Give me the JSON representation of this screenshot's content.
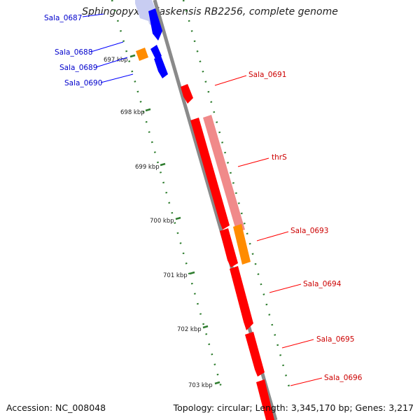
{
  "title": "Sphingopyxis alaskensis RB2256, complete genome",
  "accession": "Accession: NC_008048",
  "summary": "Topology: circular; Length: 3,345,170 bp; Genes: 3,217",
  "colors": {
    "forward": "#ff0000",
    "forward_faded": "#f08a8a",
    "reverse": "#0000ff",
    "reverse_faded": "#c8cdf2",
    "other": "#ff8c00",
    "backbone": "#8a8a8a",
    "tick": "#2e7d2e"
  },
  "ticks": [
    {
      "label": "697 kbp"
    },
    {
      "label": "698 kbp"
    },
    {
      "label": "699 kbp"
    },
    {
      "label": "700 kbp"
    },
    {
      "label": "701 kbp"
    },
    {
      "label": "702 kbp"
    },
    {
      "label": "703 kbp"
    }
  ],
  "genes_reverse": [
    {
      "label": "Sala_0687"
    },
    {
      "label": "Sala_0688"
    },
    {
      "label": "Sala_0689"
    },
    {
      "label": "Sala_0690"
    }
  ],
  "genes_forward": [
    {
      "label": "Sala_0691"
    },
    {
      "label": "thrS"
    },
    {
      "label": "Sala_0693"
    },
    {
      "label": "Sala_0694"
    },
    {
      "label": "Sala_0695"
    },
    {
      "label": "Sala_0696"
    }
  ]
}
